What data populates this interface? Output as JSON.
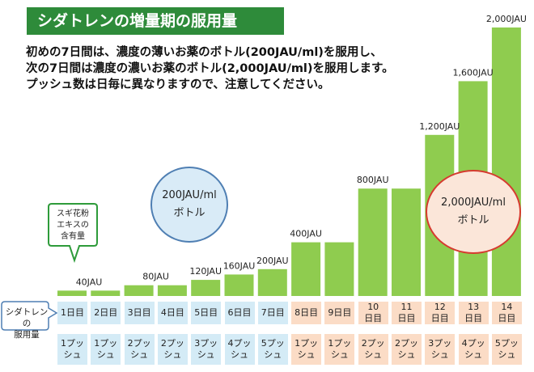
{
  "title": "シダトレンの増量期の服用量",
  "intro_lines": [
    "初めの7日間は、濃度の薄いお薬のボトル(200JAU/ml)を服用し、",
    "次の7日間は濃度の濃いお薬のボトル(2,000JAU/ml)を服用します。",
    "プッシュ数は日毎に異なりますので、注意してください。"
  ],
  "callout": {
    "lines": [
      "スギ花粉",
      "エキスの",
      "含有量"
    ]
  },
  "row_label": {
    "lines": [
      "シダトレンの",
      "服用量"
    ]
  },
  "bottles": {
    "low": {
      "line1": "200JAU/ml",
      "line2": "ボトル"
    },
    "high": {
      "line1": "2,000JAU/ml",
      "line2": "ボトル"
    }
  },
  "colors": {
    "bar": "#8fcc4f",
    "title_bg": "#2e8b3a",
    "week1_cell": "#d4ebf6",
    "week2_cell": "#fbdcc6",
    "bubble_low_border": "#4f7fb3",
    "bubble_high_border": "#d63a2f"
  },
  "chart_data": {
    "type": "bar",
    "categories": [
      "1日目",
      "2日目",
      "3日目",
      "4日目",
      "5日目",
      "6日目",
      "7日目",
      "8日目",
      "9日目",
      "10日目",
      "11日目",
      "12日目",
      "13日目",
      "14日目"
    ],
    "values": [
      40,
      40,
      80,
      80,
      120,
      160,
      200,
      400,
      400,
      800,
      800,
      1200,
      1600,
      2000
    ],
    "data_labels": [
      "40JAU",
      "",
      "80JAU",
      "",
      "120JAU",
      "160JAU",
      "200JAU",
      "400JAU",
      "",
      "800JAU",
      "",
      "1,200JAU",
      "1,600JAU",
      "2,000JAU"
    ],
    "pushes": [
      "1プッシュ",
      "1プッシュ",
      "2プッシュ",
      "2プッシュ",
      "3プッシュ",
      "4プッシュ",
      "5プッシュ",
      "1プッシュ",
      "1プッシュ",
      "2プッシュ",
      "2プッシュ",
      "3プッシュ",
      "4プッシュ",
      "5プッシュ"
    ],
    "ylim": [
      0,
      2000
    ],
    "grid": false,
    "title": "",
    "xlabel": "",
    "ylabel": ""
  }
}
